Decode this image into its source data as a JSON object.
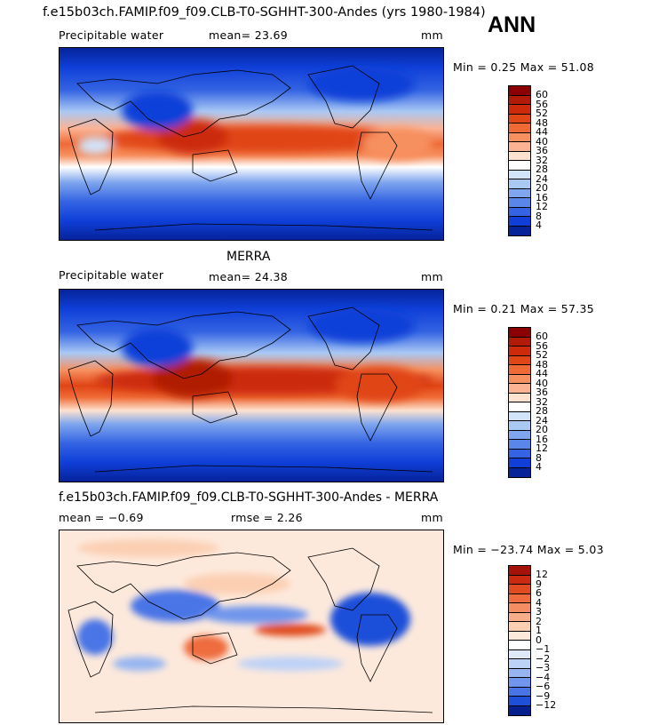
{
  "title": "f.e15b03ch.FAMIP.f09_f09.CLB-T0-SGHHT-300-Andes (yrs 1980-1984)",
  "season": "ANN",
  "panels": [
    {
      "id": "model",
      "heading": "",
      "variable": "Precipitable water",
      "mean_text": "mean=  23.69",
      "units": "mm",
      "minmax_text": "Min =   0.25 Max =  51.08",
      "colorbar": {
        "labels": [
          "60",
          "56",
          "52",
          "48",
          "44",
          "40",
          "36",
          "32",
          "28",
          "24",
          "20",
          "16",
          "12",
          "8",
          "4"
        ],
        "colors": [
          "#8b0000",
          "#b01a06",
          "#cc2a0b",
          "#e04516",
          "#ef6a35",
          "#f7905f",
          "#fbb394",
          "#fde2cf",
          "#ffffff",
          "#d2e4fa",
          "#a9c8f4",
          "#7fa6ee",
          "#5a86ea",
          "#3464e3",
          "#0f3fd8",
          "#06239a"
        ]
      }
    },
    {
      "id": "obs",
      "heading": "MERRA",
      "variable": "Precipitable water",
      "mean_text": "mean=  24.38",
      "units": "mm",
      "minmax_text": "Min =   0.21 Max =  57.35",
      "colorbar": {
        "labels": [
          "60",
          "56",
          "52",
          "48",
          "44",
          "40",
          "36",
          "32",
          "28",
          "24",
          "20",
          "16",
          "12",
          "8",
          "4"
        ],
        "colors": [
          "#8b0000",
          "#b01a06",
          "#cc2a0b",
          "#e04516",
          "#ef6a35",
          "#f7905f",
          "#fbb394",
          "#fde2cf",
          "#ffffff",
          "#d2e4fa",
          "#a9c8f4",
          "#7fa6ee",
          "#5a86ea",
          "#3464e3",
          "#0f3fd8",
          "#06239a"
        ]
      }
    },
    {
      "id": "diff",
      "heading": "f.e15b03ch.FAMIP.f09_f09.CLB-T0-SGHHT-300-Andes - MERRA",
      "variable": "",
      "mean_text": "mean =  −0.69",
      "rmse_text": "rmse =   2.26",
      "units": "mm",
      "minmax_text": "Min = −23.74 Max =   5.03",
      "colorbar": {
        "labels": [
          "12",
          "9",
          "6",
          "4",
          "3",
          "2",
          "1",
          "0",
          "−1",
          "−2",
          "−3",
          "−4",
          "−6",
          "−9",
          "−12"
        ],
        "colors": [
          "#a5120a",
          "#c92a10",
          "#e04c1f",
          "#ee6c3e",
          "#f58d62",
          "#f9ad88",
          "#fccfb2",
          "#fde9dc",
          "#ffffff",
          "#dde9fb",
          "#bdd2f7",
          "#96b5f1",
          "#6f95ec",
          "#4874e6",
          "#1e4fd9",
          "#061f8f"
        ]
      }
    }
  ]
}
